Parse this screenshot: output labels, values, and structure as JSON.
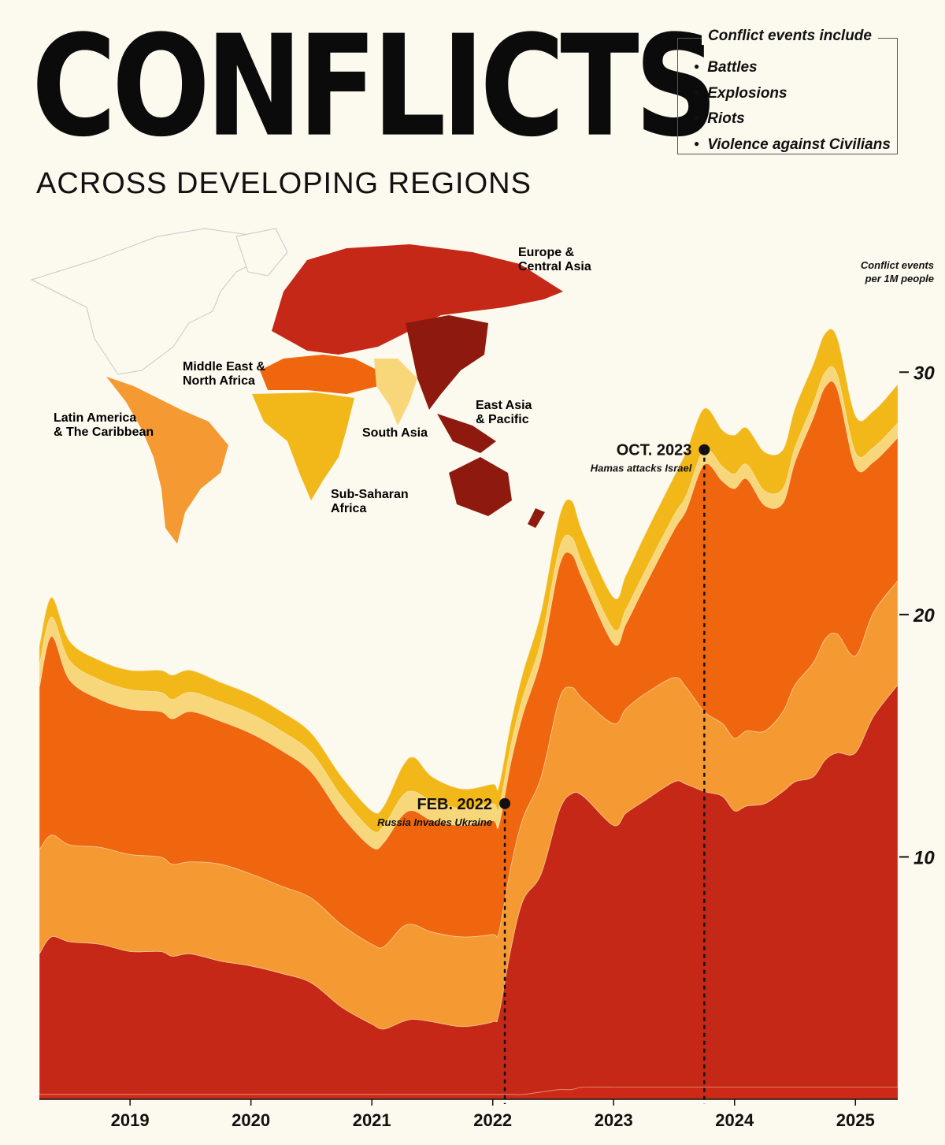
{
  "title": "CONFLICTS",
  "subtitle": "ACROSS DEVELOPING REGIONS",
  "legend": {
    "title": "Conflict events include",
    "items": [
      "Battles",
      "Explosions",
      "Riots",
      "Violence against Civilians"
    ]
  },
  "chart_data": {
    "type": "area",
    "stacked": true,
    "ylabel": "Conflict events per 1M people",
    "yticks": [
      10,
      20,
      30
    ],
    "ylim": [
      0,
      33
    ],
    "xlim": [
      2018.25,
      2025.35
    ],
    "xticks": [
      {
        "label": "2019",
        "value": 2019.0
      },
      {
        "label": "2020",
        "value": 2020.0
      },
      {
        "label": "2021",
        "value": 2021.0
      },
      {
        "label": "2022",
        "value": 2022.0
      },
      {
        "label": "2023",
        "value": 2023.0
      },
      {
        "label": "2024",
        "value": 2024.0
      },
      {
        "label": "2025",
        "value": 2025.0
      }
    ],
    "x": [
      2018.25,
      2018.35,
      2018.5,
      2018.75,
      2019.0,
      2019.25,
      2019.35,
      2019.5,
      2019.75,
      2020.0,
      2020.25,
      2020.5,
      2020.75,
      2021.0,
      2021.1,
      2021.25,
      2021.35,
      2021.5,
      2021.75,
      2022.0,
      2022.05,
      2022.15,
      2022.25,
      2022.4,
      2022.55,
      2022.65,
      2022.75,
      2023.0,
      2023.1,
      2023.25,
      2023.5,
      2023.6,
      2023.75,
      2023.9,
      2024.0,
      2024.1,
      2024.25,
      2024.4,
      2024.5,
      2024.65,
      2024.75,
      2024.85,
      2025.0,
      2025.15,
      2025.35
    ],
    "series": [
      {
        "name": "Latin America & The Caribbean",
        "color": "#cc2a16",
        "values": [
          0.2,
          0.2,
          0.2,
          0.2,
          0.2,
          0.2,
          0.2,
          0.2,
          0.2,
          0.2,
          0.2,
          0.2,
          0.2,
          0.2,
          0.2,
          0.2,
          0.2,
          0.2,
          0.2,
          0.2,
          0.2,
          0.2,
          0.2,
          0.3,
          0.4,
          0.4,
          0.5,
          0.5,
          0.5,
          0.5,
          0.5,
          0.5,
          0.5,
          0.5,
          0.5,
          0.5,
          0.5,
          0.5,
          0.5,
          0.5,
          0.5,
          0.5,
          0.5,
          0.5,
          0.5
        ]
      },
      {
        "name": "Europe & Central Asia",
        "color": "#c62818",
        "values": [
          5.8,
          6.5,
          6.3,
          6.2,
          5.9,
          5.9,
          5.7,
          5.8,
          5.5,
          5.3,
          5.0,
          4.6,
          3.6,
          2.9,
          2.7,
          3.0,
          3.1,
          3.0,
          2.8,
          3.0,
          3.3,
          6.0,
          8.0,
          9.0,
          11.5,
          12.2,
          12.0,
          10.8,
          11.3,
          11.8,
          12.6,
          12.5,
          12.2,
          12.0,
          11.4,
          11.6,
          11.7,
          12.2,
          12.6,
          12.8,
          13.5,
          13.8,
          13.8,
          15.3,
          16.6
        ]
      },
      {
        "name": "Sub-Saharan Africa",
        "color": "#f59a32",
        "values": [
          4.3,
          4.2,
          4.0,
          4.0,
          4.0,
          3.9,
          3.8,
          3.8,
          4.0,
          3.8,
          3.6,
          3.5,
          3.4,
          3.3,
          3.4,
          3.9,
          3.9,
          3.7,
          3.7,
          3.6,
          3.4,
          3.4,
          3.4,
          4.0,
          4.6,
          4.4,
          4.0,
          4.2,
          4.3,
          4.4,
          4.3,
          4.0,
          3.3,
          3.0,
          3.0,
          3.1,
          3.0,
          3.3,
          4.0,
          4.7,
          5.0,
          4.9,
          4.0,
          4.3,
          4.3
        ]
      },
      {
        "name": "Middle East & North Africa",
        "color": "#f0660e",
        "values": [
          6.7,
          8.2,
          6.8,
          6.1,
          6.0,
          6.0,
          6.0,
          6.2,
          5.9,
          5.8,
          5.6,
          5.2,
          4.5,
          4.0,
          4.3,
          4.6,
          4.7,
          4.6,
          4.6,
          4.7,
          4.4,
          4.3,
          4.3,
          4.9,
          5.5,
          5.5,
          4.9,
          3.3,
          3.5,
          4.4,
          6.1,
          7.3,
          10.2,
          10.0,
          10.3,
          10.4,
          9.3,
          8.6,
          9.2,
          10.1,
          10.4,
          10.1,
          7.8,
          6.2,
          5.9
        ]
      },
      {
        "name": "South Asia",
        "color": "#f8d77a",
        "values": [
          0.9,
          0.8,
          0.8,
          0.8,
          0.8,
          0.8,
          0.8,
          0.8,
          0.8,
          0.8,
          0.8,
          0.8,
          0.8,
          0.7,
          0.7,
          0.8,
          0.8,
          0.8,
          0.7,
          0.7,
          0.7,
          0.7,
          0.7,
          0.7,
          0.7,
          0.7,
          0.6,
          0.6,
          0.6,
          0.6,
          0.6,
          0.6,
          0.6,
          0.6,
          0.6,
          0.6,
          0.6,
          0.6,
          0.6,
          0.6,
          0.6,
          0.6,
          0.6,
          0.6,
          0.6
        ]
      },
      {
        "name": "East Asia & Pacific",
        "color": "#f2b819",
        "values": [
          0.8,
          0.8,
          0.8,
          0.8,
          0.8,
          0.9,
          1.0,
          0.9,
          0.8,
          0.8,
          0.8,
          0.8,
          0.8,
          0.8,
          0.8,
          1.2,
          1.4,
          1.0,
          0.8,
          0.8,
          0.9,
          0.9,
          1.0,
          1.2,
          1.3,
          1.5,
          1.3,
          1.3,
          1.4,
          1.5,
          1.6,
          1.8,
          1.7,
          1.5,
          1.6,
          1.5,
          1.6,
          1.6,
          1.6,
          1.6,
          1.6,
          1.5,
          1.5,
          1.5,
          1.6
        ]
      }
    ],
    "annotations": [
      {
        "x": 2022.1,
        "y": 12.2,
        "title": "FEB. 2022",
        "text": "Russia Invades Ukraine"
      },
      {
        "x": 2023.75,
        "y": 26.8,
        "title": "OCT. 2023",
        "text": "Hamas attacks Israel"
      }
    ],
    "map_labels": [
      {
        "id": "eca",
        "lines": [
          "Europe &",
          "Central Asia"
        ],
        "color": "#c62818"
      },
      {
        "id": "mena",
        "lines": [
          "Middle East &",
          "North Africa"
        ],
        "color": "#e85b0e"
      },
      {
        "id": "lac",
        "lines": [
          "Latin America",
          "& The Caribbean"
        ],
        "color": "#e88a2a"
      },
      {
        "id": "eap",
        "lines": [
          "East Asia",
          "& Pacific"
        ],
        "color": "#8a1a10"
      },
      {
        "id": "sa",
        "lines": [
          "South Asia"
        ],
        "color": "#e8c56a"
      },
      {
        "id": "ssa",
        "lines": [
          "Sub-Saharan",
          "Africa"
        ],
        "color": "#d9a418"
      }
    ]
  }
}
